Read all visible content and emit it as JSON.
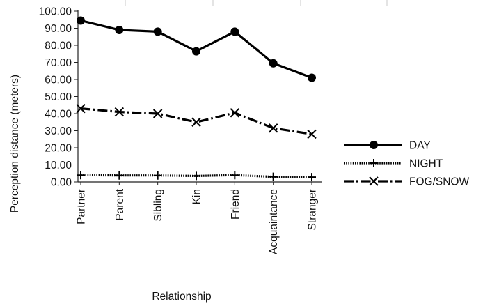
{
  "chart_data": {
    "type": "line",
    "xlabel": "Relationship",
    "ylabel": "Perception distance (meters)",
    "ylim": [
      0,
      100
    ],
    "y_ticks": [
      "0.00",
      "10.00",
      "20.00",
      "30.00",
      "40.00",
      "50.00",
      "60.00",
      "70.00",
      "80.00",
      "90.00",
      "100.00"
    ],
    "categories": [
      "Partner",
      "Parent",
      "Sibling",
      "Kin",
      "Friend",
      "Acquaintance",
      "Stranger"
    ],
    "grid": "vertical lines at top only",
    "legend_position": "right",
    "series": [
      {
        "name": "DAY",
        "marker": "circle",
        "line_style": "solid",
        "color": "#000000",
        "values": [
          94.5,
          89.0,
          88.0,
          76.5,
          88.0,
          69.5,
          61.0
        ]
      },
      {
        "name": "NIGHT",
        "marker": "plus",
        "line_style": "dotted",
        "color": "#000000",
        "values": [
          4.0,
          3.8,
          3.8,
          3.5,
          4.0,
          3.0,
          2.8
        ]
      },
      {
        "name": "FOG/SNOW",
        "marker": "x",
        "line_style": "dash-dot",
        "color": "#000000",
        "values": [
          43.0,
          41.0,
          40.0,
          35.0,
          40.5,
          31.5,
          28.0
        ]
      }
    ]
  }
}
